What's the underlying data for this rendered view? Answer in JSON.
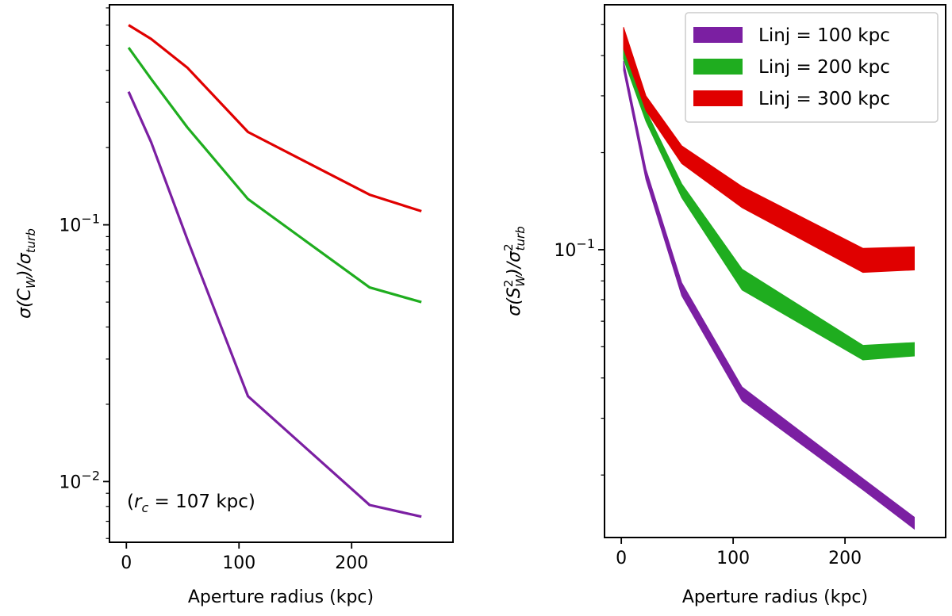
{
  "chart_data": [
    {
      "type": "line",
      "panel": "left",
      "xlabel": "Aperture radius (kpc)",
      "ylabel_main": "σ(C",
      "ylabel_sub": "W",
      "ylabel_after": ")/σ",
      "ylabel_sub2": "turb",
      "xlim": [
        -15,
        290
      ],
      "ylim": [
        0.0058,
        0.72
      ],
      "yscale": "log",
      "xticks": [
        0,
        100,
        200
      ],
      "xtick_labels": [
        "0",
        "100",
        "200"
      ],
      "yticks_major": [
        0.1,
        0.01
      ],
      "ytick_labels": [
        {
          "base": "10",
          "exp": "−1"
        },
        {
          "base": "10",
          "exp": "−2"
        }
      ],
      "annotation": {
        "prefix": "(",
        "var": "r",
        "sub": "c",
        "suffix": " = 107 kpc)"
      },
      "series": [
        {
          "name": "Linj = 100 kpc",
          "color": "#7b1fa2",
          "x": [
            2,
            22,
            54,
            108,
            216,
            262
          ],
          "y": [
            0.33,
            0.21,
            0.088,
            0.0215,
            0.0081,
            0.0073
          ]
        },
        {
          "name": "Linj = 200 kpc",
          "color": "#1fad1f",
          "x": [
            2,
            22,
            54,
            108,
            216,
            262
          ],
          "y": [
            0.49,
            0.37,
            0.24,
            0.126,
            0.057,
            0.05
          ]
        },
        {
          "name": "Linj = 300 kpc",
          "color": "#e00000",
          "x": [
            2,
            22,
            54,
            108,
            216,
            262
          ],
          "y": [
            0.6,
            0.53,
            0.41,
            0.23,
            0.131,
            0.113
          ]
        }
      ]
    },
    {
      "type": "area",
      "panel": "right",
      "xlabel": "Aperture radius (kpc)",
      "ylabel_main": "σ(S",
      "ylabel_sup": "2",
      "ylabel_sub": "W",
      "ylabel_after": ")/σ",
      "ylabel_sup2": "2",
      "ylabel_sub2": "turb",
      "xlim": [
        -15,
        290
      ],
      "ylim": [
        0.0128,
        0.575
      ],
      "yscale": "log",
      "xticks": [
        0,
        100,
        200
      ],
      "xtick_labels": [
        "0",
        "100",
        "200"
      ],
      "yticks_major": [
        0.1
      ],
      "ytick_labels": [
        {
          "base": "10",
          "exp": "−1"
        }
      ],
      "legend_position": "upper right",
      "series": [
        {
          "name": "Linj = 100 kpc",
          "color": "#7b1fa2",
          "x": [
            2,
            22,
            54,
            108,
            216,
            262
          ],
          "y_low": [
            0.36,
            0.165,
            0.072,
            0.034,
            0.018,
            0.0136
          ],
          "y_high": [
            0.385,
            0.178,
            0.079,
            0.0375,
            0.0195,
            0.0148
          ]
        },
        {
          "name": "Linj = 200 kpc",
          "color": "#1fad1f",
          "x": [
            2,
            22,
            54,
            108,
            216,
            262
          ],
          "y_low": [
            0.39,
            0.25,
            0.145,
            0.075,
            0.0455,
            0.0468
          ],
          "y_high": [
            0.42,
            0.27,
            0.16,
            0.087,
            0.0505,
            0.0515
          ]
        },
        {
          "name": "Linj = 300 kpc",
          "color": "#e00000",
          "x": [
            2,
            22,
            54,
            108,
            216,
            262
          ],
          "y_low": [
            0.42,
            0.27,
            0.185,
            0.135,
            0.085,
            0.0865
          ],
          "y_high": [
            0.49,
            0.3,
            0.21,
            0.157,
            0.101,
            0.102
          ]
        }
      ]
    }
  ]
}
